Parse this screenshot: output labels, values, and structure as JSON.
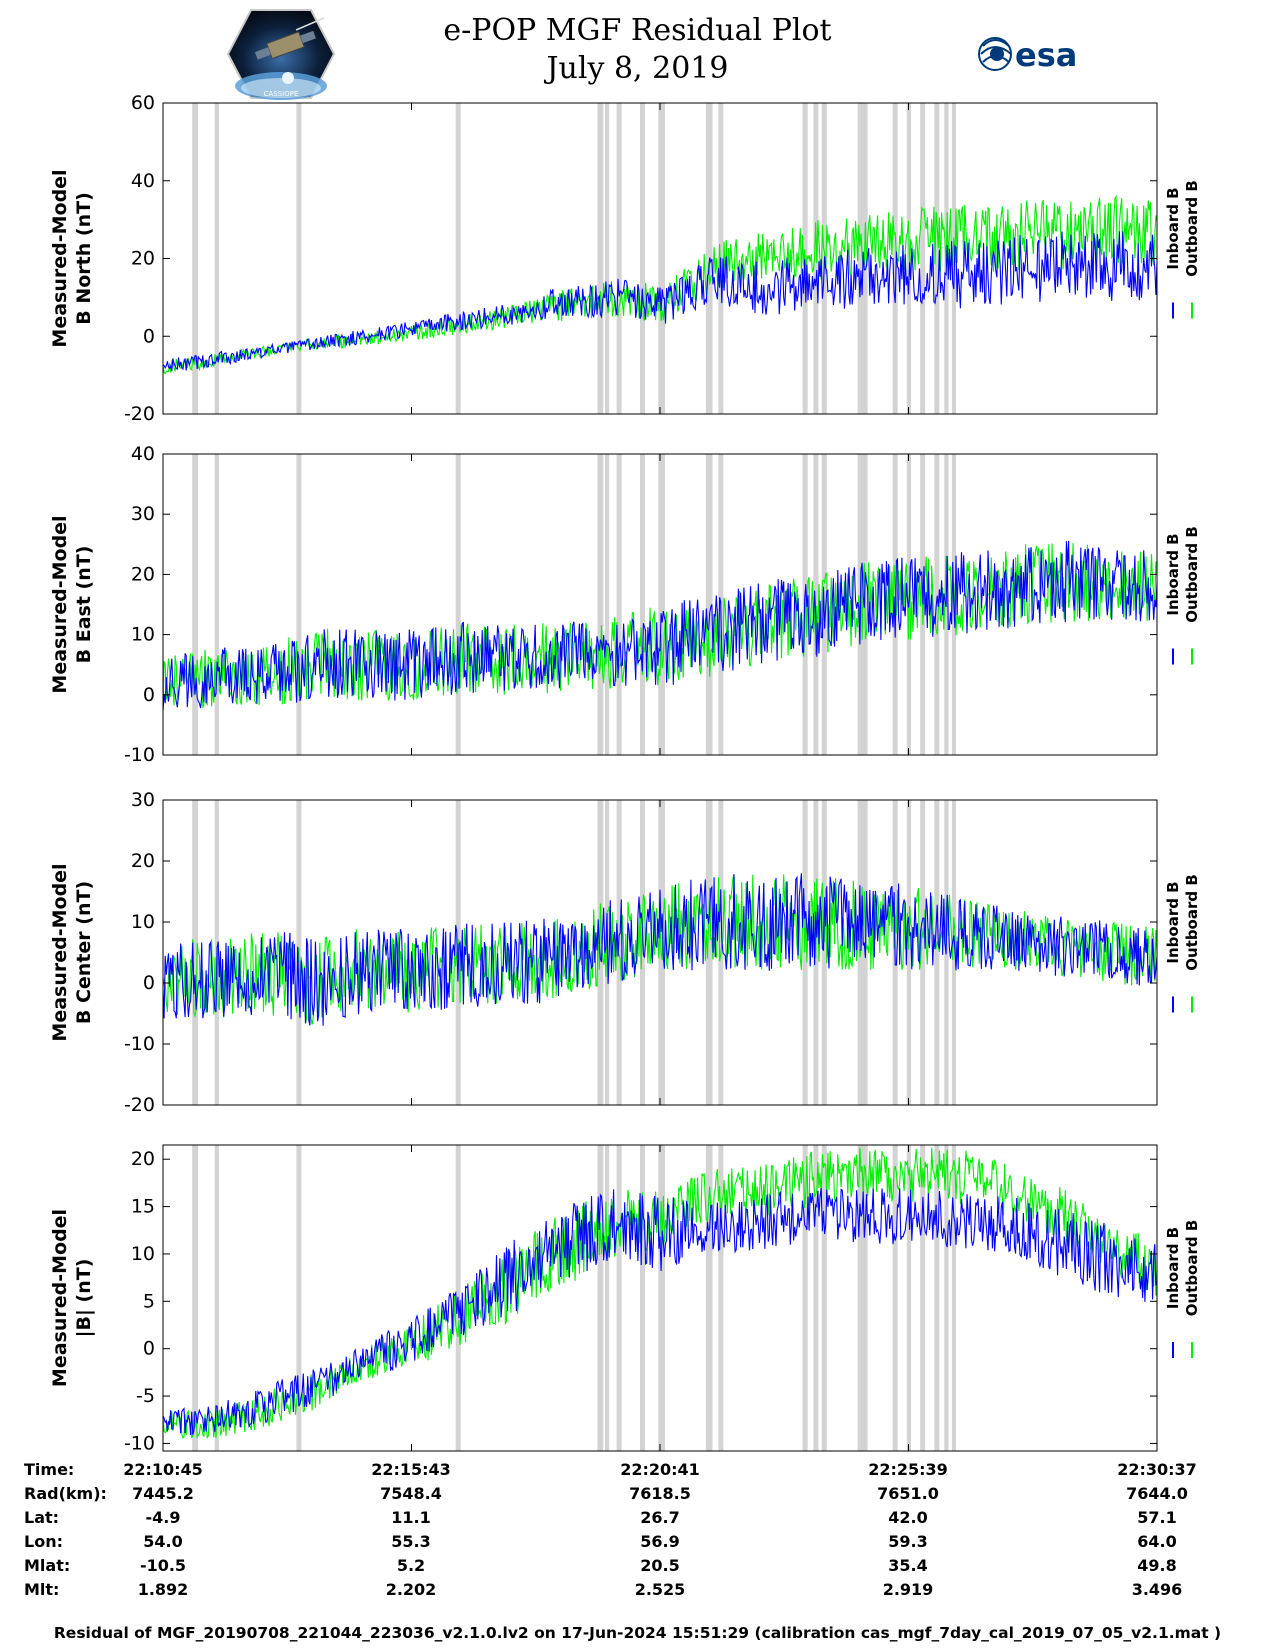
{
  "header": {
    "title_line1": "e-POP MGF Residual Plot",
    "title_line2": "July 8, 2019",
    "left_logo_text": "CASSIOPE",
    "right_logo_text": "esa"
  },
  "colors": {
    "inboard": "#0000ff",
    "outboard": "#00ee00",
    "gap_band": "#d3d3d3"
  },
  "legend": {
    "inboard_label": "Inboard B",
    "outboard_label": "Outboard B"
  },
  "time_ticks": [
    "22:10:45",
    "22:15:43",
    "22:20:41",
    "22:25:39",
    "22:30:37"
  ],
  "gap_bands_seconds": [
    [
      35,
      42
    ],
    [
      62,
      67
    ],
    [
      160,
      166
    ],
    [
      351,
      357
    ],
    [
      521,
      528
    ],
    [
      530,
      535
    ],
    [
      544,
      550
    ],
    [
      572,
      578
    ],
    [
      594,
      602
    ],
    [
      651,
      659
    ],
    [
      666,
      672
    ],
    [
      767,
      773
    ],
    [
      780,
      786
    ],
    [
      790,
      796
    ],
    [
      833,
      845
    ],
    [
      875,
      881
    ],
    [
      892,
      897
    ],
    [
      908,
      914
    ],
    [
      925,
      931
    ],
    [
      937,
      942
    ],
    [
      946,
      951
    ]
  ],
  "info_table": {
    "rows": [
      {
        "label": "Time:",
        "values": [
          "22:10:45",
          "22:15:43",
          "22:20:41",
          "22:25:39",
          "22:30:37"
        ]
      },
      {
        "label": "Rad(km):",
        "values": [
          "7445.2",
          "7548.4",
          "7618.5",
          "7651.0",
          "7644.0"
        ]
      },
      {
        "label": "Lat:",
        "values": [
          "-4.9",
          "11.1",
          "26.7",
          "42.0",
          "57.1"
        ]
      },
      {
        "label": "Lon:",
        "values": [
          "54.0",
          "55.3",
          "56.9",
          "59.3",
          "64.0"
        ]
      },
      {
        "label": "Mlat:",
        "values": [
          "-10.5",
          "5.2",
          "20.5",
          "35.4",
          "49.8"
        ]
      },
      {
        "label": "Mlt:",
        "values": [
          "1.892",
          "2.202",
          "2.525",
          "2.919",
          "3.496"
        ]
      }
    ]
  },
  "footer": "Residual of MGF_20190708_221044_223036_v2.1.0.lv2 on 17-Jun-2024 15:51:29 (calibration cas_mgf_7day_cal_2019_07_05_v2.1.mat )",
  "chart_data": [
    {
      "type": "line",
      "ylabel_line1": "Measured-Model",
      "ylabel_line2": "B North (nT)",
      "ylim": [
        -20,
        60
      ],
      "yticks": [
        -20,
        0,
        20,
        40,
        60
      ],
      "x_range_seconds": [
        0,
        1192
      ],
      "series": [
        {
          "name": "Inboard B",
          "x": [
            0,
            60,
            120,
            180,
            240,
            300,
            360,
            420,
            480,
            540,
            600,
            660,
            720,
            780,
            840,
            900,
            960,
            1020,
            1080,
            1140,
            1192
          ],
          "values": [
            -8,
            -6,
            -4,
            -2,
            0,
            2,
            4,
            6,
            9,
            10,
            8,
            15,
            12,
            14,
            15,
            16,
            16,
            17,
            18,
            18,
            18
          ],
          "noise": [
            2,
            2,
            1.5,
            1.5,
            2,
            2,
            2.5,
            3,
            4,
            5,
            5,
            7,
            7,
            8,
            8,
            8,
            9,
            9,
            9,
            9,
            9
          ]
        },
        {
          "name": "Outboard B",
          "x": [
            0,
            60,
            120,
            180,
            240,
            300,
            360,
            420,
            480,
            540,
            600,
            660,
            720,
            780,
            840,
            900,
            960,
            1020,
            1080,
            1140,
            1192
          ],
          "values": [
            -8,
            -6,
            -4,
            -2,
            -1,
            1,
            3,
            5,
            8,
            10,
            8,
            18,
            20,
            22,
            24,
            25,
            25,
            26,
            26,
            27,
            27
          ],
          "noise": [
            2,
            2,
            1.5,
            1.5,
            2,
            2,
            2.5,
            3,
            4,
            5,
            5,
            6,
            7,
            8,
            8,
            8,
            9,
            9,
            9,
            9,
            9
          ]
        }
      ]
    },
    {
      "type": "line",
      "ylabel_line1": "Measured-Model",
      "ylabel_line2": "B East (nT)",
      "ylim": [
        -10,
        40
      ],
      "yticks": [
        -10,
        0,
        10,
        20,
        30,
        40
      ],
      "x_range_seconds": [
        0,
        1192
      ],
      "series": [
        {
          "name": "Inboard B",
          "x": [
            0,
            60,
            120,
            180,
            240,
            300,
            360,
            420,
            480,
            540,
            600,
            660,
            720,
            780,
            840,
            900,
            960,
            1020,
            1080,
            1140,
            1192
          ],
          "values": [
            2,
            3,
            3,
            5,
            5,
            5,
            6,
            6,
            6,
            7,
            8,
            10,
            12,
            13,
            15,
            16,
            17,
            18,
            19,
            18,
            18
          ],
          "noise": [
            5,
            5,
            5,
            6,
            6,
            6,
            6,
            6,
            6,
            6,
            7,
            7,
            7,
            7,
            7,
            7,
            7,
            7,
            7,
            6,
            6
          ]
        },
        {
          "name": "Outboard B",
          "x": [
            0,
            60,
            120,
            180,
            240,
            300,
            360,
            420,
            480,
            540,
            600,
            660,
            720,
            780,
            840,
            900,
            960,
            1020,
            1080,
            1140,
            1192
          ],
          "values": [
            2,
            3,
            3,
            5,
            5,
            5,
            6,
            6,
            6,
            7,
            8,
            10,
            12,
            13,
            15,
            16,
            17,
            18,
            19,
            18,
            18
          ],
          "noise": [
            5,
            5,
            5,
            6,
            6,
            6,
            6,
            6,
            6,
            6,
            7,
            7,
            7,
            7,
            7,
            7,
            7,
            7,
            7,
            6,
            6
          ]
        }
      ]
    },
    {
      "type": "line",
      "ylabel_line1": "Measured-Model",
      "ylabel_line2": "B Center (nT)",
      "ylim": [
        -20,
        30
      ],
      "yticks": [
        -20,
        -10,
        0,
        10,
        20,
        30
      ],
      "x_range_seconds": [
        0,
        1192
      ],
      "series": [
        {
          "name": "Inboard B",
          "x": [
            0,
            60,
            120,
            180,
            240,
            300,
            360,
            420,
            480,
            540,
            600,
            660,
            720,
            780,
            840,
            900,
            960,
            1020,
            1080,
            1140,
            1192
          ],
          "values": [
            0,
            1,
            2,
            0,
            2,
            2,
            3,
            3,
            4,
            7,
            9,
            10,
            10,
            10,
            10,
            9,
            8,
            7,
            6,
            5,
            4
          ],
          "noise": [
            6,
            7,
            7,
            8,
            7,
            7,
            7,
            7,
            7,
            7,
            7,
            8,
            8,
            8,
            8,
            7,
            6,
            5,
            5,
            5,
            5
          ]
        },
        {
          "name": "Outboard B",
          "x": [
            0,
            60,
            120,
            180,
            240,
            300,
            360,
            420,
            480,
            540,
            600,
            660,
            720,
            780,
            840,
            900,
            960,
            1020,
            1080,
            1140,
            1192
          ],
          "values": [
            0,
            1,
            2,
            0,
            2,
            2,
            3,
            3,
            4,
            7,
            9,
            10,
            10,
            10,
            10,
            9,
            8,
            7,
            6,
            5,
            4
          ],
          "noise": [
            6,
            7,
            7,
            8,
            7,
            7,
            7,
            7,
            7,
            7,
            7,
            8,
            8,
            8,
            8,
            7,
            6,
            5,
            5,
            5,
            5
          ]
        }
      ]
    },
    {
      "type": "line",
      "ylabel_line1": "Measured-Model",
      "ylabel_line2": "|B| (nT)",
      "ylim": [
        -10.8,
        21.5
      ],
      "yticks": [
        -10,
        -5,
        0,
        5,
        10,
        15,
        20
      ],
      "x_range_seconds": [
        0,
        1192
      ],
      "series": [
        {
          "name": "Inboard B",
          "x": [
            0,
            60,
            120,
            180,
            240,
            300,
            360,
            420,
            480,
            540,
            600,
            660,
            720,
            780,
            840,
            900,
            960,
            1020,
            1080,
            1140,
            1192
          ],
          "values": [
            -8,
            -7.5,
            -6,
            -4,
            -1.5,
            1,
            4,
            7.5,
            11,
            13,
            12,
            13,
            13.5,
            14,
            14,
            14,
            13.5,
            13,
            11,
            9,
            7
          ],
          "noise": [
            1.5,
            1.5,
            2,
            2,
            2,
            2.5,
            3,
            4,
            4,
            4,
            4,
            3,
            3,
            3,
            3,
            3,
            3,
            3,
            4,
            4,
            4
          ]
        },
        {
          "name": "Outboard B",
          "x": [
            0,
            60,
            120,
            180,
            240,
            300,
            360,
            420,
            480,
            540,
            600,
            660,
            720,
            780,
            840,
            900,
            960,
            1020,
            1080,
            1140,
            1192
          ],
          "values": [
            -8,
            -8,
            -6.5,
            -4.5,
            -2,
            0.5,
            3.5,
            7,
            10.5,
            13,
            14,
            16,
            17,
            18,
            18.5,
            18.5,
            18,
            16.5,
            14,
            11,
            8
          ],
          "noise": [
            1.5,
            1.5,
            2,
            2,
            2,
            2.5,
            3,
            4,
            4,
            4,
            3,
            3,
            3,
            3,
            3,
            3,
            3,
            3,
            3,
            3,
            3
          ]
        }
      ]
    }
  ]
}
